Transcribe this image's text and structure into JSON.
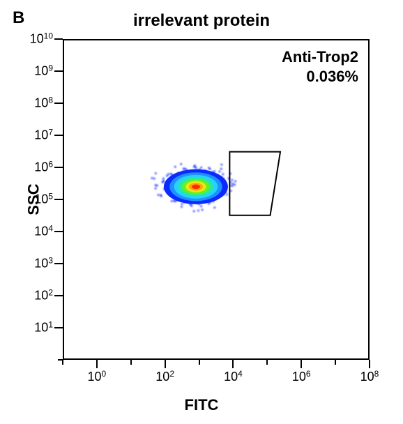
{
  "panel_letter": "B",
  "title": "irrelevant protein",
  "xlabel": "FITC",
  "ylabel": "SSC",
  "gate": {
    "label_line1": "Anti-Trop2",
    "label_line2": "0.036%"
  },
  "axes": {
    "x": {
      "min_exp": -1,
      "max_exp": 8,
      "label_exps": [
        0,
        2,
        4,
        6,
        8
      ]
    },
    "y": {
      "min_exp": 0,
      "max_exp": 10,
      "label_exps": [
        1,
        2,
        3,
        4,
        5,
        6,
        7,
        8,
        9,
        10
      ]
    }
  },
  "gate_polygon_pts": [
    [
      3.9,
      4.5
    ],
    [
      5.1,
      4.5
    ],
    [
      5.4,
      6.5
    ],
    [
      3.9,
      6.5
    ]
  ],
  "population": {
    "cx_exp": 2.9,
    "cy_exp": 5.4,
    "rx_exp": 0.95,
    "ry_exp": 0.55
  },
  "colors": {
    "outer": "#0b2aff",
    "mid1": "#1e90ff",
    "mid2": "#27d1ff",
    "mid3": "#25eaa0",
    "mid4": "#6af020",
    "mid5": "#e8e81e",
    "mid6": "#ffa500",
    "core": "#ff2a00",
    "tick": "#000000",
    "border": "#000000",
    "bg": "#ffffff"
  }
}
